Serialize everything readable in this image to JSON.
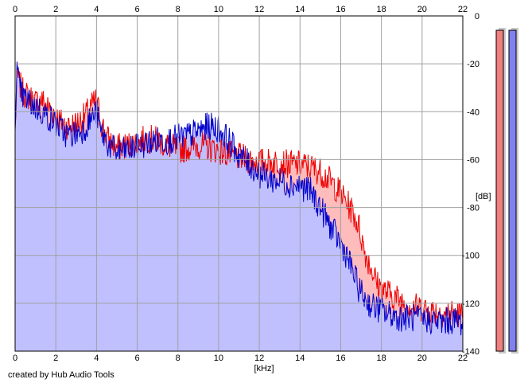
{
  "chart_data": {
    "type": "area",
    "title": "",
    "xlabel": "[kHz]",
    "ylabel": "[dB]",
    "xlim": [
      0,
      22
    ],
    "ylim": [
      -140,
      0
    ],
    "x_ticks": [
      0,
      2,
      4,
      6,
      8,
      10,
      12,
      14,
      16,
      18,
      20,
      22
    ],
    "x_tick_labels": [
      "0",
      "2",
      "4",
      "6",
      "8",
      "10",
      "12",
      "14",
      "16",
      "18",
      "20",
      "22"
    ],
    "y_ticks": [
      0,
      -20,
      -40,
      -60,
      -80,
      -100,
      -120,
      -140
    ],
    "y_tick_labels": [
      "0",
      "-20",
      "-40",
      "-60",
      "-80",
      "-100",
      "-120",
      "-140"
    ],
    "grid": true,
    "series": [
      {
        "color": "#ee0000",
        "fill": "#ffbcbc",
        "x": [
          0.0,
          0.1,
          0.2,
          0.4,
          0.7,
          1.0,
          1.3,
          1.6,
          1.9,
          2.2,
          2.6,
          3.0,
          3.4,
          3.8,
          4.0,
          4.2,
          4.6,
          5.0,
          5.5,
          6.0,
          6.5,
          7.0,
          7.5,
          8.0,
          8.5,
          9.0,
          9.5,
          10.0,
          10.5,
          11.0,
          11.5,
          12.0,
          12.5,
          13.0,
          13.5,
          14.0,
          14.5,
          15.0,
          15.5,
          16.0,
          16.3,
          16.6,
          16.9,
          17.2,
          17.5,
          17.8,
          18.2,
          18.6,
          19.0,
          19.5,
          20.0,
          20.5,
          21.0,
          21.5,
          22.0
        ],
        "values": [
          -48,
          -24,
          -28,
          -32,
          -34,
          -36,
          -35,
          -38,
          -40,
          -44,
          -46,
          -45,
          -42,
          -37,
          -35,
          -44,
          -52,
          -55,
          -54,
          -53,
          -51,
          -52,
          -54,
          -56,
          -55,
          -54,
          -55,
          -56,
          -58,
          -59,
          -60,
          -61,
          -61,
          -61,
          -62,
          -62,
          -63,
          -65,
          -69,
          -74,
          -78,
          -82,
          -88,
          -99,
          -105,
          -112,
          -115,
          -117,
          -119,
          -121,
          -122,
          -123,
          -124,
          -124,
          -125
        ]
      },
      {
        "color": "#0000cc",
        "fill": "#c0c0ff",
        "x": [
          0.0,
          0.1,
          0.2,
          0.4,
          0.7,
          1.0,
          1.3,
          1.6,
          1.9,
          2.2,
          2.6,
          3.0,
          3.4,
          3.8,
          4.0,
          4.2,
          4.6,
          5.0,
          5.5,
          6.0,
          6.5,
          7.0,
          7.5,
          8.0,
          8.5,
          9.0,
          9.5,
          10.0,
          10.5,
          11.0,
          11.5,
          12.0,
          12.5,
          13.0,
          13.5,
          14.0,
          14.5,
          15.0,
          15.5,
          16.0,
          16.3,
          16.6,
          16.9,
          17.2,
          17.5,
          17.8,
          18.2,
          18.6,
          19.0,
          19.5,
          20.0,
          20.5,
          21.0,
          21.5,
          22.0
        ],
        "values": [
          -42,
          -22,
          -30,
          -34,
          -36,
          -38,
          -40,
          -42,
          -44,
          -47,
          -50,
          -49,
          -47,
          -42,
          -40,
          -48,
          -54,
          -57,
          -56,
          -55,
          -53,
          -52,
          -52,
          -51,
          -50,
          -48,
          -46,
          -47,
          -52,
          -58,
          -62,
          -66,
          -68,
          -69,
          -70,
          -71,
          -73,
          -80,
          -88,
          -95,
          -100,
          -107,
          -114,
          -118,
          -121,
          -122,
          -124,
          -125,
          -126,
          -126,
          -127,
          -127,
          -128,
          -127,
          -128
        ]
      }
    ],
    "level_meters": [
      {
        "color": "#f08080",
        "level": -4
      },
      {
        "color": "#8080f0",
        "level": -4
      }
    ]
  },
  "labels": {
    "x_unit": "[kHz]",
    "y_unit": "[dB]",
    "credit": "created by Hub Audio Tools"
  }
}
